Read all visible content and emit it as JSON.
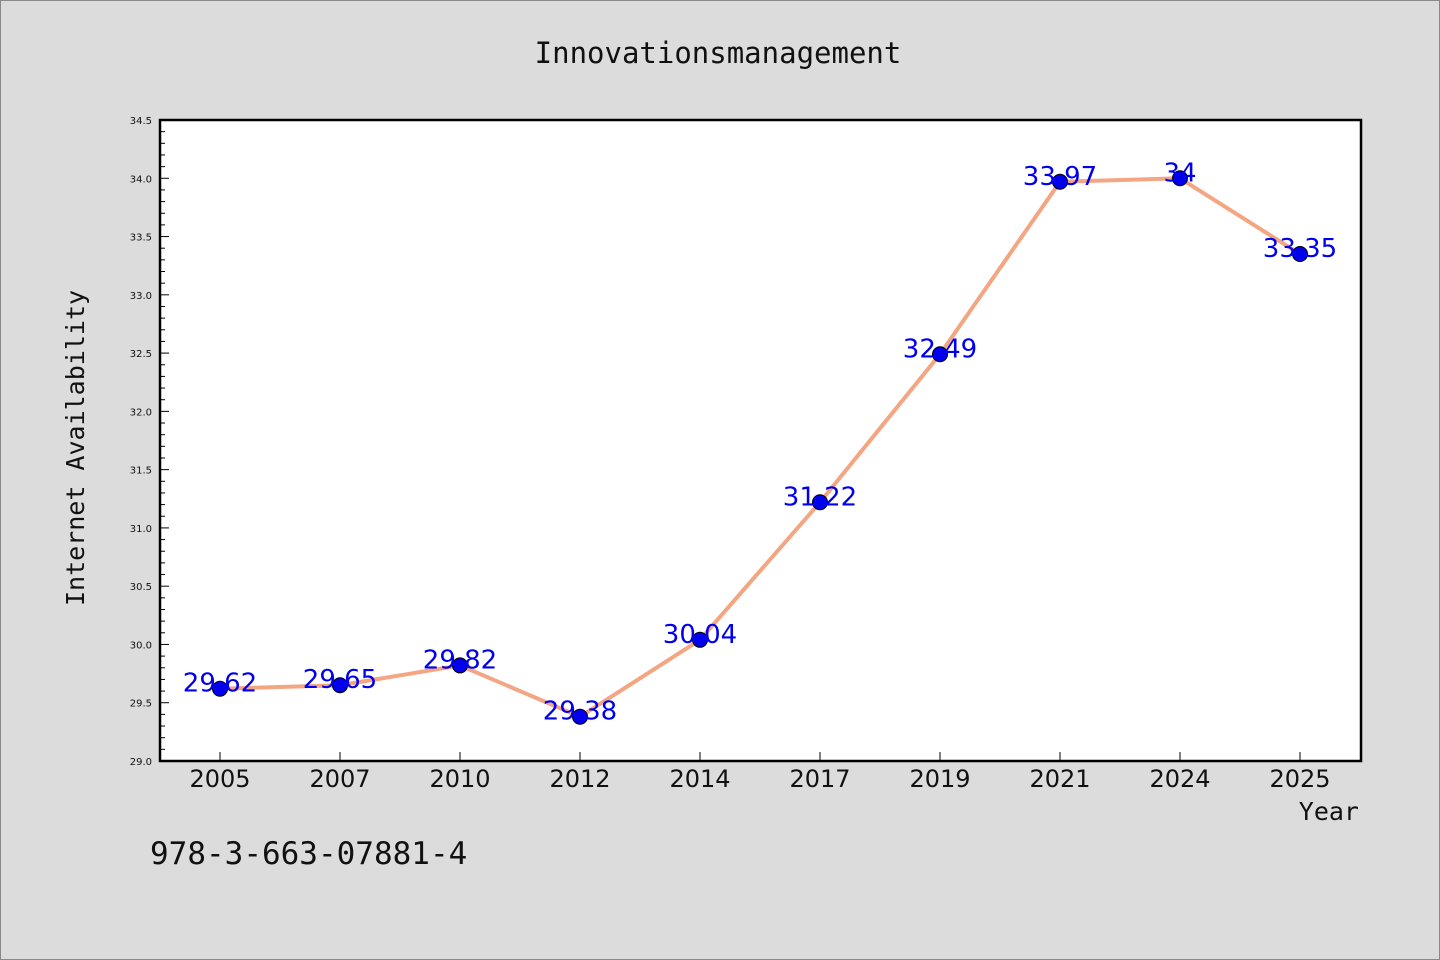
{
  "chart_data": {
    "type": "line",
    "title": "Innovationsmanagement",
    "xlabel": "Year",
    "ylabel": "Internet Availability",
    "categories": [
      "2005",
      "2007",
      "2010",
      "2012",
      "2014",
      "2017",
      "2019",
      "2021",
      "2024",
      "2025"
    ],
    "values": [
      29.62,
      29.65,
      29.82,
      29.38,
      30.04,
      31.22,
      32.49,
      33.97,
      34,
      33.35
    ],
    "data_labels": [
      "29.62",
      "29.65",
      "29.82",
      "29.38",
      "30.04",
      "31.22",
      "32.49",
      "33.97",
      "34",
      "33.35"
    ],
    "ylim": [
      29.0,
      34.5
    ],
    "yticks": [
      "29.0",
      "29.5",
      "30.0",
      "30.5",
      "31.0",
      "31.5",
      "32.0",
      "32.5",
      "33.0",
      "33.5",
      "34.0",
      "34.5"
    ],
    "grid": false,
    "legend": "none",
    "line_color": "#f4a582",
    "marker_color": "#0000ee"
  },
  "annotation": "978-3-663-07881-4"
}
